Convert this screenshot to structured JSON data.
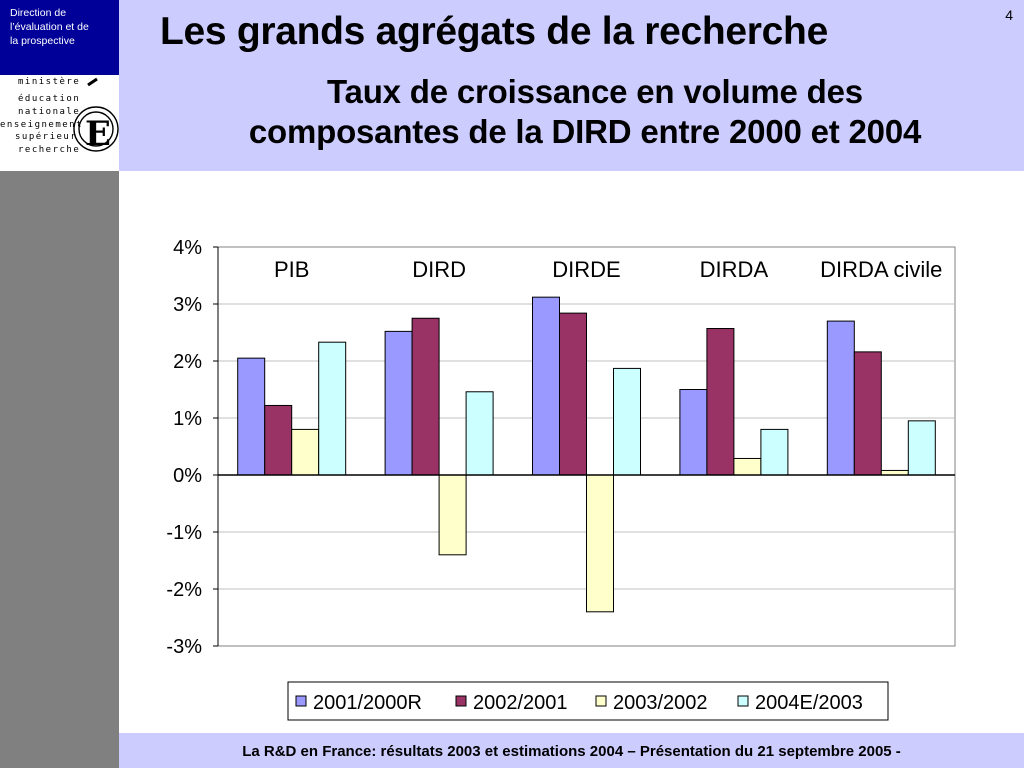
{
  "header": {
    "direction_lines": [
      "Direction de",
      "l’évaluation  et de",
      "la prospective"
    ],
    "logo_lines": [
      "ministère",
      "éducation",
      "nationale",
      "enseignement",
      "supérieur",
      "recherche"
    ],
    "logo_letter": "E",
    "page_number": "4",
    "title": "Les grands agrégats de la recherche",
    "subtitle_line1": "Taux de croissance en volume des",
    "subtitle_line2": "composantes de la DIRD entre 2000 et 2004"
  },
  "footer": {
    "text": "La R&D en France: résultats 2003 et estimations 2004 – Présentation du 21 septembre 2005 -"
  },
  "colors": {
    "header_band": "#ccccff",
    "direction_box": "#000099",
    "left_panel": "#808080"
  },
  "chart_data": {
    "type": "bar",
    "title": "",
    "xlabel": "",
    "ylabel": "",
    "categories": [
      "PIB",
      "DIRD",
      "DIRDE",
      "DIRDA",
      "DIRDA civile"
    ],
    "ylim": [
      -3,
      4
    ],
    "yticks": [
      4,
      3,
      2,
      1,
      0,
      -1,
      -2,
      -3
    ],
    "ytick_labels": [
      "4%",
      "3%",
      "2%",
      "1%",
      "0%",
      "-1%",
      "-2%",
      "-3%"
    ],
    "grid": true,
    "legend_position": "bottom",
    "series": [
      {
        "name": "2001/2000R",
        "color": "#9999ff",
        "values": [
          2.05,
          2.52,
          3.12,
          1.5,
          2.7
        ]
      },
      {
        "name": "2002/2001",
        "color": "#993366",
        "values": [
          1.22,
          2.75,
          2.84,
          2.57,
          2.16
        ]
      },
      {
        "name": "2003/2002",
        "color": "#ffffcc",
        "values": [
          0.8,
          -1.4,
          -2.4,
          0.29,
          0.08
        ]
      },
      {
        "name": "2004E/2003",
        "color": "#ccffff",
        "values": [
          2.33,
          1.46,
          1.87,
          0.8,
          0.95
        ]
      }
    ]
  }
}
